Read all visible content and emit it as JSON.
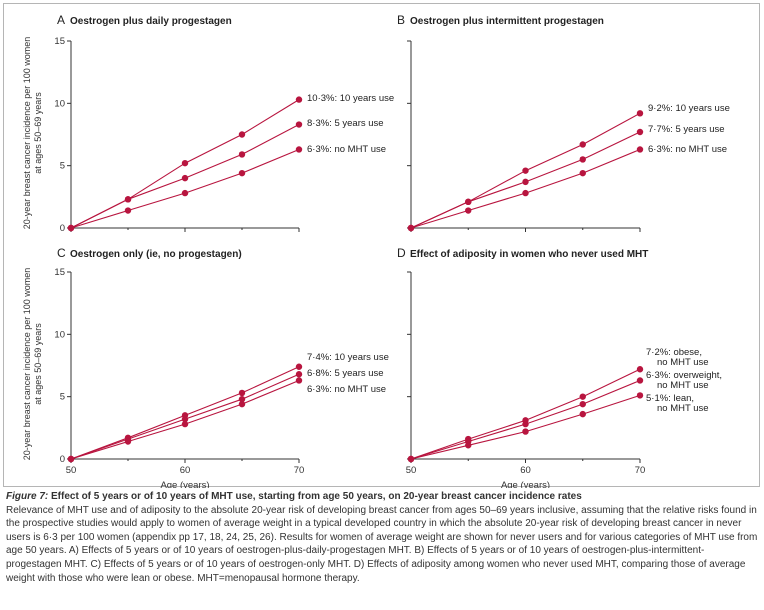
{
  "colors": {
    "series": "#b8153f",
    "axis": "#333333",
    "text": "#333333"
  },
  "y_axis_label_line1": "20-year breast cancer incidence per 100 women",
  "y_axis_label_line2": "at ages 50–69 years",
  "chart_data": [
    {
      "type": "line",
      "panel_letter": "A",
      "title": "Oestrogen plus daily progestagen",
      "x": [
        50,
        55,
        60,
        65,
        70
      ],
      "xlim": [
        50,
        70
      ],
      "ylim": [
        0,
        15
      ],
      "yticks": [
        0,
        5,
        10,
        15
      ],
      "series": [
        {
          "label": "10·3%: 10 years use",
          "values": [
            0,
            2.3,
            5.2,
            7.5,
            10.3
          ]
        },
        {
          "label": "8·3%: 5 years use",
          "values": [
            0,
            2.3,
            4.0,
            5.9,
            8.3
          ]
        },
        {
          "label": "6·3%: no MHT use",
          "values": [
            0,
            1.4,
            2.8,
            4.4,
            6.3
          ]
        }
      ]
    },
    {
      "type": "line",
      "panel_letter": "B",
      "title": "Oestrogen plus intermittent progestagen",
      "x": [
        50,
        55,
        60,
        65,
        70
      ],
      "xlim": [
        50,
        70
      ],
      "ylim": [
        0,
        15
      ],
      "series": [
        {
          "label": "9·2%: 10 years use",
          "values": [
            0,
            2.1,
            4.6,
            6.7,
            9.2
          ]
        },
        {
          "label": "7·7%: 5 years use",
          "values": [
            0,
            2.1,
            3.7,
            5.5,
            7.7
          ]
        },
        {
          "label": "6·3%: no MHT use",
          "values": [
            0,
            1.4,
            2.8,
            4.4,
            6.3
          ]
        }
      ]
    },
    {
      "type": "line",
      "panel_letter": "C",
      "title": "Oestrogen only (ie, no progestagen)",
      "x": [
        50,
        55,
        60,
        65,
        70
      ],
      "xlim": [
        50,
        70
      ],
      "ylim": [
        0,
        15
      ],
      "yticks": [
        0,
        5,
        10,
        15
      ],
      "xticks": [
        50,
        60,
        70
      ],
      "xlabel": "Age (years)",
      "series": [
        {
          "label": "7·4%: 10 years use",
          "values": [
            0,
            1.7,
            3.5,
            5.3,
            7.4
          ]
        },
        {
          "label": "6·8%: 5 years use",
          "values": [
            0,
            1.6,
            3.2,
            4.8,
            6.8
          ]
        },
        {
          "label": "6·3%: no MHT use",
          "values": [
            0,
            1.4,
            2.8,
            4.4,
            6.3
          ]
        }
      ]
    },
    {
      "type": "line",
      "panel_letter": "D",
      "title": "Effect of adiposity in women who never used MHT",
      "x": [
        50,
        55,
        60,
        65,
        70
      ],
      "xlim": [
        50,
        70
      ],
      "ylim": [
        0,
        15
      ],
      "xticks": [
        50,
        60,
        70
      ],
      "xlabel": "Age (years)",
      "series": [
        {
          "label": "7·2%: obese, no MHT use",
          "values": [
            0,
            1.6,
            3.1,
            5.0,
            7.2
          ]
        },
        {
          "label": "6·3%: overweight, no MHT use",
          "values": [
            0,
            1.4,
            2.8,
            4.4,
            6.3
          ]
        },
        {
          "label": "5·1%: lean, no MHT use",
          "values": [
            0,
            1.1,
            2.2,
            3.6,
            5.1
          ]
        }
      ]
    }
  ],
  "caption": {
    "figure_label": "Figure 7:",
    "title": " Effect of 5 years or of 10 years of MHT use, starting from age 50 years, on 20-year breast cancer incidence rates",
    "body": "Relevance of MHT use and of adiposity to the absolute 20-year risk of developing breast cancer from ages 50–69 years inclusive, assuming that the relative risks found in the prospective studies would apply to women of average weight in a typical developed country in which the absolute 20-year risk of developing breast cancer in never users is 6·3 per 100 women (appendix pp 17, 18, 24, 25, 26). Results for women of average weight are shown for never users and for various categories of MHT use from age 50 years. A) Effects of 5 years or of 10 years of oestrogen-plus-daily-progestagen MHT. B) Effects of 5 years or of 10 years of oestrogen-plus-intermittent-progestagen MHT. C) Effects of 5 years or of 10 years of oestrogen-only MHT. D) Effects of adiposity among women who never used MHT, comparing those of average weight with those who were lean or obese. MHT=menopausal hormone therapy."
  }
}
